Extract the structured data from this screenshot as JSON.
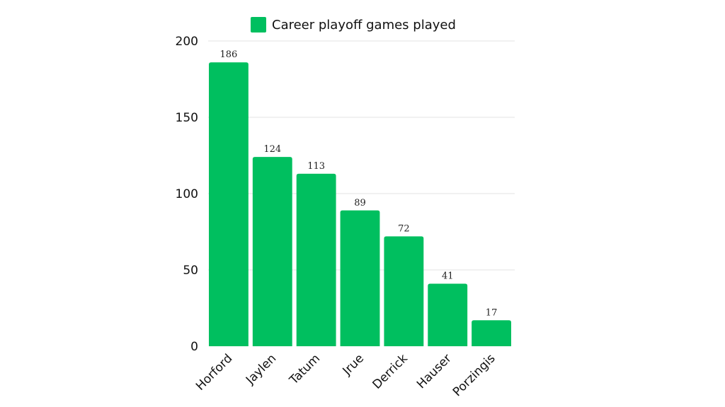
{
  "chart_data": {
    "type": "bar",
    "categories": [
      "Horford",
      "Jaylen",
      "Tatum",
      "Jrue",
      "Derrick",
      "Hauser",
      "Porzingis"
    ],
    "series": [
      {
        "name": "Career playoff games played",
        "values": [
          186,
          124,
          113,
          89,
          72,
          41,
          17
        ]
      }
    ],
    "ylim": [
      0,
      200
    ],
    "yticks": [
      0,
      50,
      100,
      150,
      200
    ],
    "grid": true,
    "legend_position": "top-center",
    "bar_color": "#00bf5f"
  }
}
